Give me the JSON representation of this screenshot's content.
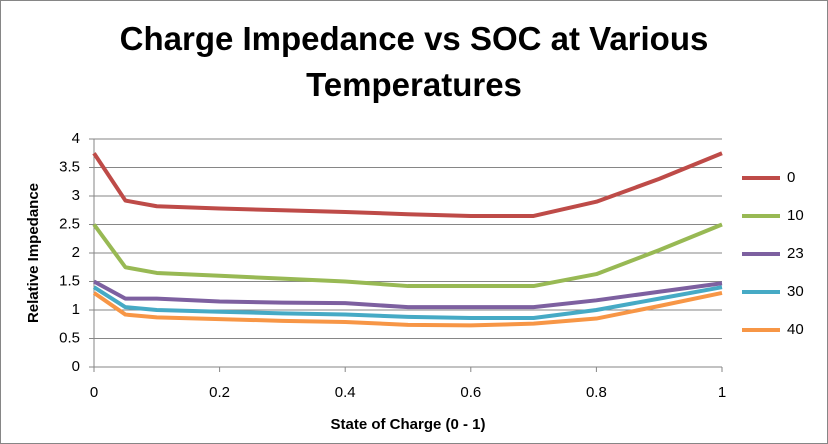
{
  "chart_data": {
    "type": "line",
    "title": "Charge Impedance vs SOC at Various Temperatures",
    "x_label": "State of Charge (0 - 1)",
    "y_label": "Relative Impedance",
    "x": [
      0,
      0.05,
      0.1,
      0.2,
      0.3,
      0.4,
      0.5,
      0.6,
      0.7,
      0.8,
      0.9,
      1
    ],
    "series": [
      {
        "name": "0",
        "color": "#be4b48",
        "values": [
          3.75,
          2.92,
          2.82,
          2.78,
          2.75,
          2.72,
          2.68,
          2.65,
          2.65,
          2.9,
          3.3,
          3.75
        ]
      },
      {
        "name": "10",
        "color": "#98b954",
        "values": [
          2.5,
          1.75,
          1.65,
          1.6,
          1.55,
          1.5,
          1.42,
          1.42,
          1.42,
          1.63,
          2.05,
          2.5
        ]
      },
      {
        "name": "23",
        "color": "#7d60a0",
        "values": [
          1.5,
          1.2,
          1.2,
          1.15,
          1.13,
          1.12,
          1.05,
          1.05,
          1.05,
          1.17,
          1.32,
          1.47
        ]
      },
      {
        "name": "30",
        "color": "#46aac5",
        "values": [
          1.4,
          1.05,
          1.0,
          0.97,
          0.94,
          0.92,
          0.88,
          0.86,
          0.86,
          1.0,
          1.2,
          1.4
        ]
      },
      {
        "name": "40",
        "color": "#f79646",
        "values": [
          1.3,
          0.92,
          0.87,
          0.84,
          0.81,
          0.79,
          0.74,
          0.73,
          0.76,
          0.85,
          1.07,
          1.3
        ]
      }
    ],
    "xlim": [
      0,
      1
    ],
    "xticks": [
      0,
      0.2,
      0.4,
      0.6,
      0.8,
      1
    ],
    "ylim": [
      0,
      4
    ],
    "yticks": [
      0,
      0.5,
      1,
      1.5,
      2,
      2.5,
      3,
      3.5,
      4
    ],
    "grid": true,
    "legend": "right"
  }
}
